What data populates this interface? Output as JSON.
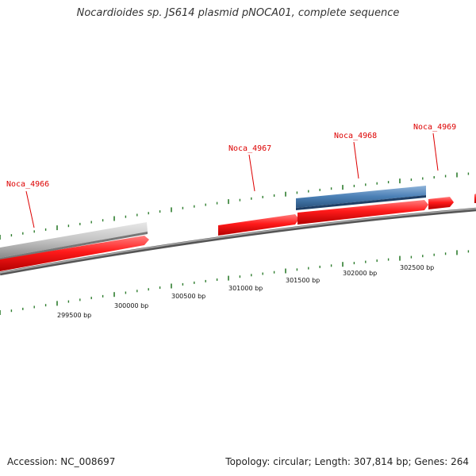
{
  "title": "Nocardioides sp. JS614 plasmid pNOCA01, complete sequence",
  "footer": {
    "accession": "Accession: NC_008697",
    "summary": "Topology: circular; Length: 307,814 bp; Genes: 264"
  },
  "colors": {
    "forward_cds": "#ff1a1a",
    "reverse_cds": "#4a7fb5",
    "pseudo_feature": "#bdbdbd",
    "backbone": "#777777",
    "tick": "#2e7d2e",
    "label": "#dd0000"
  },
  "gene_labels": [
    "Noca_4966",
    "Noca_4967",
    "Noca_4968",
    "Noca_4969"
  ],
  "scale_labels": [
    "299500 bp",
    "300000 bp",
    "300500 bp",
    "301000 bp",
    "301500 bp",
    "302000 bp",
    "302500 bp"
  ]
}
